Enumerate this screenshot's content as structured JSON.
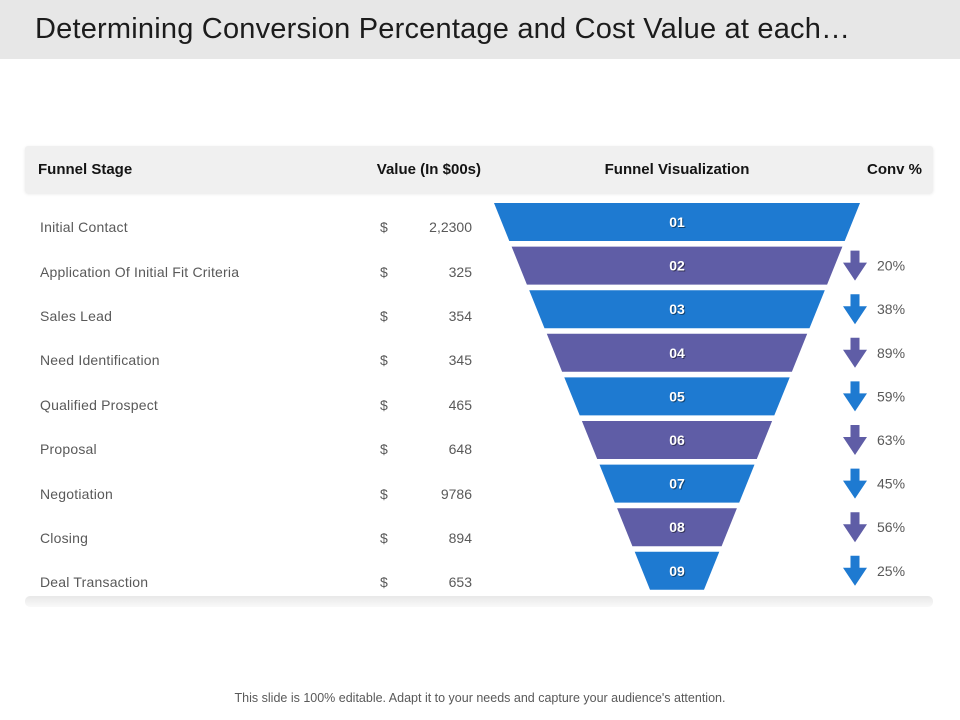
{
  "title_bar": {
    "title": "Determining Conversion Percentage and Cost Value at each…"
  },
  "table": {
    "headers": {
      "stage": "Funnel Stage",
      "value": "Value (In $00s)",
      "visualization": "Funnel Visualization",
      "conv": "Conv %"
    },
    "rows": [
      {
        "stage": "Initial Contact",
        "currency": "$",
        "value": "2,2300"
      },
      {
        "stage": "Application Of Initial Fit Criteria",
        "currency": "$",
        "value": "325"
      },
      {
        "stage": "Sales Lead",
        "currency": "$",
        "value": "354"
      },
      {
        "stage": "Need Identification",
        "currency": "$",
        "value": "345"
      },
      {
        "stage": "Qualified Prospect",
        "currency": "$",
        "value": "465"
      },
      {
        "stage": "Proposal",
        "currency": "$",
        "value": "648"
      },
      {
        "stage": "Negotiation",
        "currency": "$",
        "value": "9786"
      },
      {
        "stage": "Closing",
        "currency": "$",
        "value": "894"
      },
      {
        "stage": "Deal Transaction",
        "currency": "$",
        "value": "653"
      }
    ]
  },
  "chart_data": {
    "type": "funnel",
    "title": "Funnel Visualization",
    "direction": "top-down",
    "segments": [
      {
        "index": "01",
        "stage": "Initial Contact",
        "value_in_00s": "2,2300",
        "color": "#1e7ad1",
        "conv_pct": null
      },
      {
        "index": "02",
        "stage": "Application Of Initial Fit Criteria",
        "value_in_00s": "325",
        "color": "#5f5da6",
        "conv_pct": "20%"
      },
      {
        "index": "03",
        "stage": "Sales Lead",
        "value_in_00s": "354",
        "color": "#1e7ad1",
        "conv_pct": "38%"
      },
      {
        "index": "04",
        "stage": "Need Identification",
        "value_in_00s": "345",
        "color": "#5f5da6",
        "conv_pct": "89%"
      },
      {
        "index": "05",
        "stage": "Qualified Prospect",
        "value_in_00s": "465",
        "color": "#1e7ad1",
        "conv_pct": "59%"
      },
      {
        "index": "06",
        "stage": "Proposal",
        "value_in_00s": "648",
        "color": "#5f5da6",
        "conv_pct": "63%"
      },
      {
        "index": "07",
        "stage": "Negotiation",
        "value_in_00s": "9786",
        "color": "#1e7ad1",
        "conv_pct": "45%"
      },
      {
        "index": "08",
        "stage": "Closing",
        "value_in_00s": "894",
        "color": "#5f5da6",
        "conv_pct": "56%"
      },
      {
        "index": "09",
        "stage": "Deal Transaction",
        "value_in_00s": "653",
        "color": "#1e7ad1",
        "conv_pct": "25%"
      }
    ],
    "conv_percentages": [
      20,
      38,
      89,
      59,
      63,
      45,
      56,
      25
    ],
    "alternating_colors": [
      "#1e7ad1",
      "#5f5da6"
    ]
  },
  "footer": {
    "note": "This slide is 100% editable. Adapt it to your needs and capture your audience's attention."
  },
  "colors": {
    "accent_blue": "#1e7ad1",
    "accent_purple": "#5f5da6",
    "title_bar_bg": "#e7e7e7",
    "table_header_bg": "#f0f0f0",
    "body_text": "#595959"
  }
}
